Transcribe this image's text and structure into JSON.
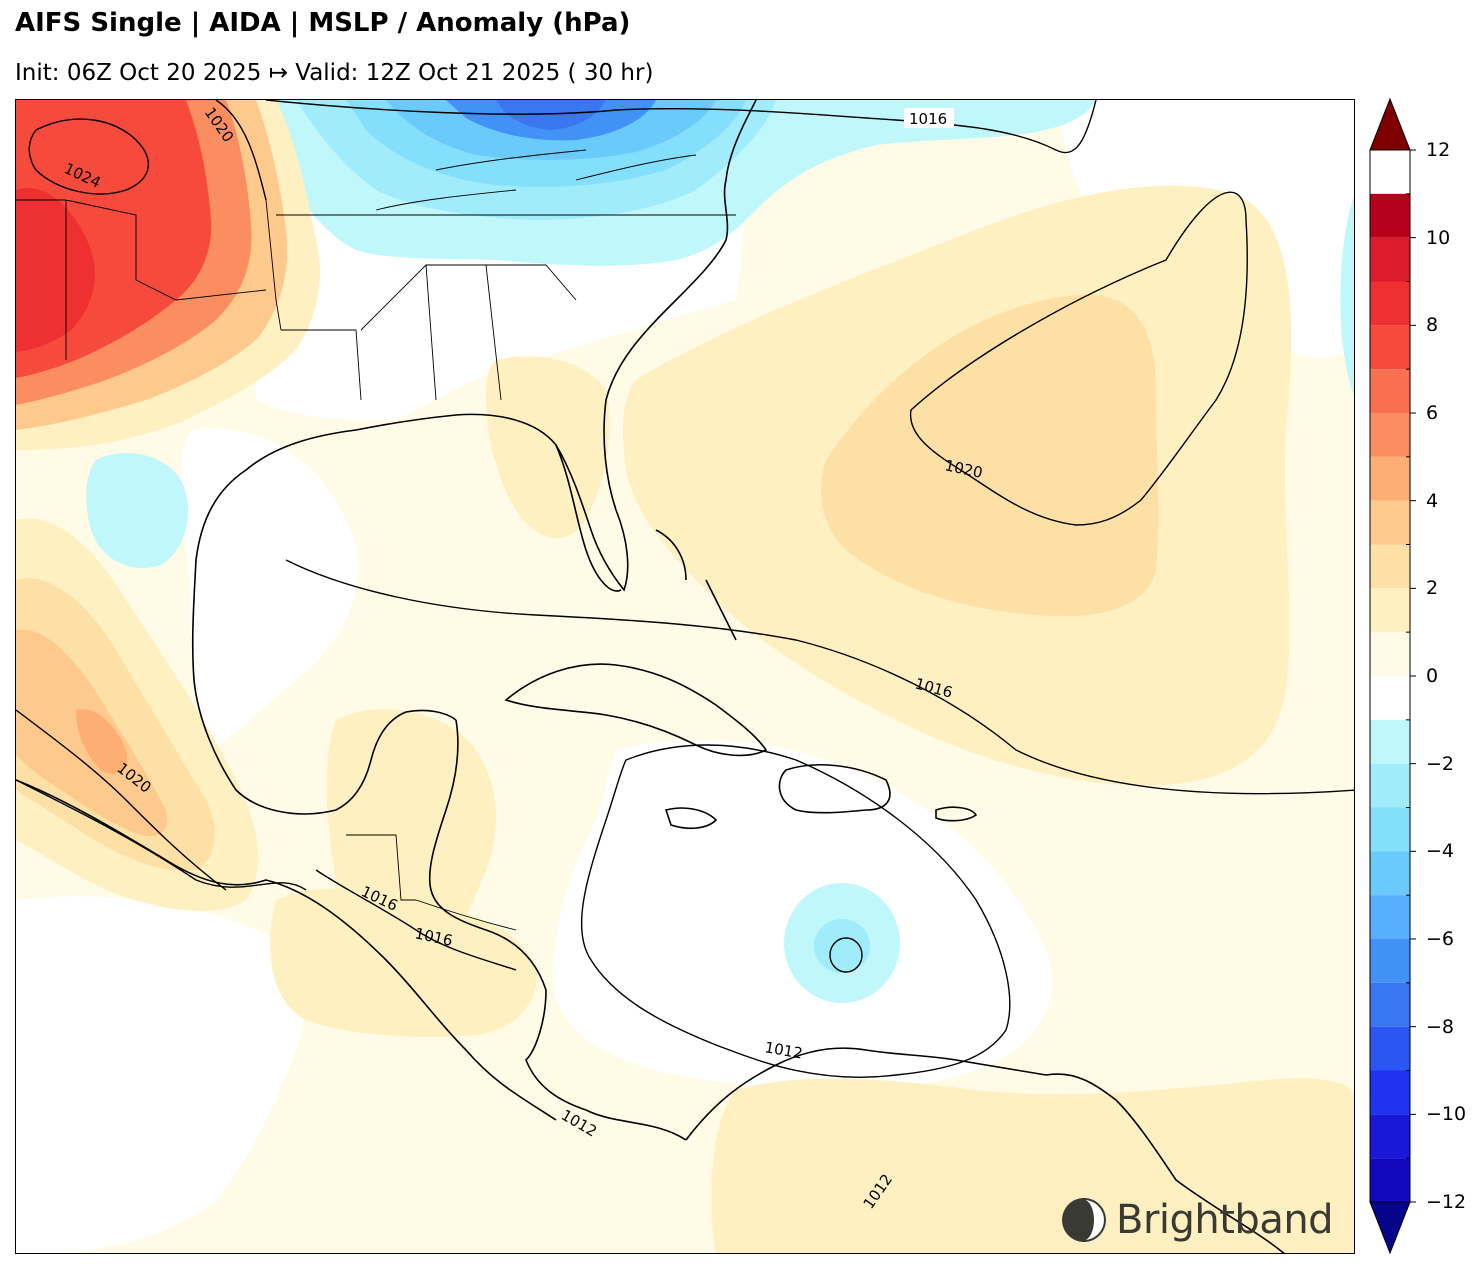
{
  "header": {
    "title": "AIFS Single | AIDA | MSLP / Anomaly (hPa)",
    "subtitle": "Init: 06Z Oct 20 2025 ↦ Valid: 12Z Oct 21 2025 ( 30 hr)"
  },
  "map": {
    "contour_labels": [
      {
        "id": "c1016-top",
        "text": "1016"
      },
      {
        "id": "c1024-west",
        "text": "1024"
      },
      {
        "id": "c1020-topleft",
        "text": "1020"
      },
      {
        "id": "c1020-atlantic",
        "text": "1020"
      },
      {
        "id": "c1016-atlantic",
        "text": "1016"
      },
      {
        "id": "c1020-mexico",
        "text": "1020"
      },
      {
        "id": "c1016-guatemala",
        "text": "1016"
      },
      {
        "id": "c1016-honduras",
        "text": "1016"
      },
      {
        "id": "c1012-caribbean",
        "text": "1012"
      },
      {
        "id": "c1012-panama",
        "text": "1012"
      },
      {
        "id": "c1012-colombia",
        "text": "1012"
      }
    ]
  },
  "colorbar": {
    "ticks": [
      "12",
      "10",
      "8",
      "6",
      "4",
      "2",
      "0",
      "−2",
      "−4",
      "−6",
      "−8",
      "−10",
      "−12"
    ],
    "tick_values": [
      12,
      10,
      8,
      6,
      4,
      2,
      0,
      -2,
      -4,
      -6,
      -8,
      -10,
      -12
    ],
    "range": [
      -12,
      12
    ],
    "colors": {
      "over": "#7f0000",
      "11": "#b5001c",
      "10": "#dc1c2c",
      "9": "#ee3030",
      "8": "#f54a3c",
      "7": "#f87050",
      "6": "#fb8e60",
      "5": "#fcae74",
      "4": "#fdc98c",
      "3": "#fde0a6",
      "2": "#fef0c0",
      "1": "#fffbe6",
      "0": "#ffffff",
      "-1": "#ffffff",
      "-2": "#bff7fb",
      "-3": "#a0ecfb",
      "-4": "#83dffb",
      "-5": "#6acbfb",
      "-6": "#56b0fb",
      "-7": "#4291f6",
      "-8": "#3a76ef",
      "-9": "#2c56f2",
      "-10": "#1e32f0",
      "-11": "#1a18d8",
      "-12": "#1208c0",
      "under": "#06048a"
    }
  },
  "logo": {
    "text": "Brightband",
    "icon": "brightband-logo-icon"
  }
}
